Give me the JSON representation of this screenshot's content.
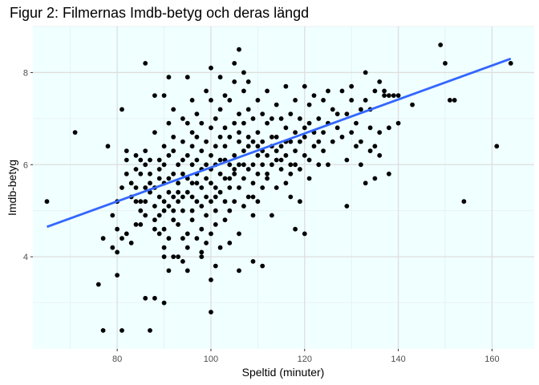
{
  "chart_data": {
    "type": "scatter",
    "title": "Figur 2: Filmernas Imdb-betyg och deras längd",
    "xlabel": "Speltid (minuter)",
    "ylabel": "Imdb-betyg",
    "xlim": [
      62,
      169
    ],
    "ylim": [
      2.0,
      9.0
    ],
    "xticks": [
      80,
      100,
      120,
      140,
      160
    ],
    "yticks": [
      4,
      6,
      8
    ],
    "grid": true,
    "legend": "none",
    "background_color": "#f0ffff",
    "point_color": "#000000",
    "trend_line_color": "#3366ff",
    "trend_line": {
      "x": [
        65,
        164
      ],
      "y": [
        4.65,
        8.3
      ]
    },
    "points": [
      [
        65,
        5.2
      ],
      [
        71,
        6.7
      ],
      [
        76,
        3.4
      ],
      [
        77,
        2.4
      ],
      [
        77,
        4.4
      ],
      [
        78,
        6.4
      ],
      [
        79,
        4.2
      ],
      [
        79,
        4.9
      ],
      [
        80,
        3.6
      ],
      [
        80,
        4.6
      ],
      [
        80,
        5.2
      ],
      [
        80,
        4.1
      ],
      [
        81,
        7.2
      ],
      [
        81,
        2.4
      ],
      [
        81,
        4.4
      ],
      [
        81,
        5.5
      ],
      [
        82,
        5.8
      ],
      [
        82,
        6.1
      ],
      [
        82,
        6.3
      ],
      [
        82,
        4.5
      ],
      [
        83,
        5.3
      ],
      [
        83,
        5.6
      ],
      [
        83,
        4.3
      ],
      [
        84,
        5.2
      ],
      [
        84,
        5.5
      ],
      [
        84,
        5.9
      ],
      [
        84,
        6.2
      ],
      [
        84,
        4.7
      ],
      [
        85,
        5.0
      ],
      [
        85,
        5.8
      ],
      [
        85,
        6.1
      ],
      [
        85,
        5.2
      ],
      [
        85,
        4.7
      ],
      [
        86,
        5.5
      ],
      [
        86,
        6.0
      ],
      [
        86,
        6.3
      ],
      [
        86,
        5.2
      ],
      [
        86,
        3.1
      ],
      [
        86,
        8.2
      ],
      [
        86,
        4.9
      ],
      [
        87,
        5.4
      ],
      [
        87,
        5.8
      ],
      [
        87,
        6.1
      ],
      [
        87,
        5.6
      ],
      [
        87,
        2.4
      ],
      [
        88,
        4.8
      ],
      [
        88,
        5.1
      ],
      [
        88,
        5.5
      ],
      [
        88,
        6.7
      ],
      [
        88,
        7.5
      ],
      [
        88,
        3.1
      ],
      [
        88,
        4.6
      ],
      [
        89,
        5.9
      ],
      [
        89,
        4.9
      ],
      [
        89,
        5.3
      ],
      [
        89,
        5.7
      ],
      [
        89,
        6.1
      ],
      [
        89,
        4.5
      ],
      [
        90,
        4.0
      ],
      [
        90,
        4.2
      ],
      [
        90,
        4.6
      ],
      [
        90,
        5.0
      ],
      [
        90,
        5.6
      ],
      [
        90,
        6.0
      ],
      [
        90,
        6.4
      ],
      [
        90,
        3.0
      ],
      [
        90,
        7.5
      ],
      [
        90,
        5.2
      ],
      [
        91,
        5.1
      ],
      [
        91,
        5.4
      ],
      [
        91,
        5.7
      ],
      [
        91,
        6.2
      ],
      [
        91,
        6.9
      ],
      [
        91,
        3.7
      ],
      [
        91,
        7.9
      ],
      [
        91,
        4.4
      ],
      [
        92,
        4.0
      ],
      [
        92,
        4.8
      ],
      [
        92,
        5.0
      ],
      [
        92,
        5.3
      ],
      [
        92,
        5.8
      ],
      [
        92,
        6.3
      ],
      [
        92,
        6.6
      ],
      [
        92,
        7.2
      ],
      [
        93,
        4.7
      ],
      [
        93,
        5.2
      ],
      [
        93,
        5.6
      ],
      [
        93,
        6.0
      ],
      [
        93,
        5.4
      ],
      [
        93,
        4.0
      ],
      [
        94,
        3.9
      ],
      [
        94,
        4.4
      ],
      [
        94,
        5.0
      ],
      [
        94,
        5.8
      ],
      [
        94,
        6.1
      ],
      [
        94,
        6.5
      ],
      [
        94,
        7.0
      ],
      [
        94,
        5.3
      ],
      [
        95,
        4.2
      ],
      [
        95,
        4.5
      ],
      [
        95,
        5.4
      ],
      [
        95,
        5.7
      ],
      [
        95,
        6.2
      ],
      [
        95,
        6.9
      ],
      [
        95,
        7.9
      ],
      [
        95,
        3.7
      ],
      [
        96,
        4.8
      ],
      [
        96,
        5.0
      ],
      [
        96,
        5.6
      ],
      [
        96,
        6.0
      ],
      [
        96,
        6.4
      ],
      [
        96,
        6.7
      ],
      [
        96,
        7.4
      ],
      [
        96,
        5.3
      ],
      [
        97,
        4.4
      ],
      [
        97,
        5.2
      ],
      [
        97,
        5.8
      ],
      [
        97,
        6.1
      ],
      [
        97,
        6.6
      ],
      [
        97,
        7.1
      ],
      [
        97,
        5.6
      ],
      [
        98,
        4.1
      ],
      [
        98,
        4.6
      ],
      [
        98,
        5.5
      ],
      [
        98,
        5.9
      ],
      [
        98,
        6.3
      ],
      [
        98,
        6.9
      ],
      [
        98,
        5.1
      ],
      [
        98,
        4.0
      ],
      [
        99,
        4.9
      ],
      [
        99,
        5.3
      ],
      [
        99,
        5.7
      ],
      [
        99,
        6.0
      ],
      [
        99,
        6.5
      ],
      [
        99,
        7.6
      ],
      [
        99,
        4.3
      ],
      [
        100,
        3.5
      ],
      [
        100,
        2.8
      ],
      [
        100,
        4.5
      ],
      [
        100,
        5.2
      ],
      [
        100,
        5.6
      ],
      [
        100,
        6.2
      ],
      [
        100,
        6.8
      ],
      [
        100,
        7.4
      ],
      [
        100,
        8.1
      ],
      [
        100,
        5.9
      ],
      [
        101,
        4.7
      ],
      [
        101,
        5.0
      ],
      [
        101,
        5.5
      ],
      [
        101,
        6.0
      ],
      [
        101,
        6.4
      ],
      [
        101,
        7.0
      ],
      [
        101,
        3.8
      ],
      [
        101,
        5.3
      ],
      [
        102,
        5.4
      ],
      [
        102,
        5.8
      ],
      [
        102,
        6.1
      ],
      [
        102,
        6.6
      ],
      [
        102,
        7.2
      ],
      [
        102,
        7.9
      ],
      [
        102,
        4.2
      ],
      [
        103,
        4.8
      ],
      [
        103,
        5.2
      ],
      [
        103,
        5.7
      ],
      [
        103,
        6.4
      ],
      [
        103,
        6.8
      ],
      [
        103,
        7.5
      ],
      [
        103,
        6.1
      ],
      [
        104,
        4.3
      ],
      [
        104,
        5.0
      ],
      [
        104,
        5.5
      ],
      [
        104,
        6.0
      ],
      [
        104,
        6.6
      ],
      [
        104,
        7.4
      ],
      [
        104,
        5.7
      ],
      [
        105,
        5.2
      ],
      [
        105,
        5.8
      ],
      [
        105,
        6.2
      ],
      [
        105,
        6.9
      ],
      [
        105,
        7.8
      ],
      [
        105,
        8.2
      ],
      [
        105,
        5.9
      ],
      [
        106,
        4.5
      ],
      [
        106,
        5.5
      ],
      [
        106,
        6.0
      ],
      [
        106,
        6.5
      ],
      [
        106,
        7.1
      ],
      [
        106,
        8.5
      ],
      [
        106,
        3.7
      ],
      [
        106,
        6.7
      ],
      [
        107,
        5.1
      ],
      [
        107,
        5.7
      ],
      [
        107,
        6.3
      ],
      [
        107,
        6.9
      ],
      [
        107,
        7.6
      ],
      [
        107,
        8.0
      ],
      [
        107,
        6.0
      ],
      [
        108,
        5.3
      ],
      [
        108,
        5.9
      ],
      [
        108,
        6.4
      ],
      [
        108,
        7.2
      ],
      [
        108,
        7.8
      ],
      [
        108,
        6.6
      ],
      [
        109,
        4.9
      ],
      [
        109,
        5.6
      ],
      [
        109,
        6.0
      ],
      [
        109,
        6.5
      ],
      [
        109,
        7.0
      ],
      [
        109,
        3.9
      ],
      [
        109,
        5.3
      ],
      [
        110,
        5.2
      ],
      [
        110,
        5.8
      ],
      [
        110,
        6.2
      ],
      [
        110,
        6.7
      ],
      [
        110,
        7.4
      ],
      [
        110,
        6.4
      ],
      [
        111,
        3.8
      ],
      [
        111,
        5.5
      ],
      [
        111,
        6.0
      ],
      [
        111,
        6.5
      ],
      [
        111,
        7.1
      ],
      [
        111,
        6.3
      ],
      [
        112,
        5.7
      ],
      [
        112,
        6.2
      ],
      [
        112,
        6.9
      ],
      [
        112,
        7.6
      ],
      [
        112,
        5.8
      ],
      [
        113,
        4.9
      ],
      [
        113,
        6.0
      ],
      [
        113,
        6.4
      ],
      [
        113,
        7.0
      ],
      [
        113,
        6.6
      ],
      [
        114,
        5.5
      ],
      [
        114,
        6.1
      ],
      [
        114,
        6.6
      ],
      [
        114,
        7.3
      ],
      [
        114,
        6.3
      ],
      [
        115,
        5.9
      ],
      [
        115,
        6.4
      ],
      [
        115,
        7.0
      ],
      [
        115,
        6.1
      ],
      [
        116,
        5.6
      ],
      [
        116,
        6.2
      ],
      [
        116,
        6.8
      ],
      [
        116,
        7.7
      ],
      [
        116,
        6.5
      ],
      [
        117,
        5.3
      ],
      [
        117,
        6.0
      ],
      [
        117,
        6.5
      ],
      [
        117,
        7.1
      ],
      [
        117,
        5.8
      ],
      [
        118,
        4.6
      ],
      [
        118,
        6.3
      ],
      [
        118,
        6.7
      ],
      [
        118,
        7.4
      ],
      [
        118,
        6.0
      ],
      [
        119,
        5.9
      ],
      [
        119,
        6.5
      ],
      [
        119,
        7.0
      ],
      [
        119,
        5.2
      ],
      [
        120,
        4.5
      ],
      [
        120,
        6.2
      ],
      [
        120,
        6.6
      ],
      [
        120,
        7.7
      ],
      [
        120,
        6.8
      ],
      [
        121,
        5.7
      ],
      [
        121,
        6.9
      ],
      [
        121,
        7.3
      ],
      [
        121,
        6.1
      ],
      [
        122,
        6.4
      ],
      [
        122,
        6.7
      ],
      [
        122,
        7.5
      ],
      [
        123,
        6.0
      ],
      [
        123,
        6.5
      ],
      [
        123,
        7.0
      ],
      [
        124,
        6.3
      ],
      [
        124,
        6.7
      ],
      [
        124,
        7.4
      ],
      [
        125,
        6.0
      ],
      [
        125,
        6.9
      ],
      [
        125,
        7.6
      ],
      [
        126,
        6.5
      ],
      [
        126,
        7.2
      ],
      [
        127,
        6.8
      ],
      [
        127,
        7.1
      ],
      [
        128,
        6.6
      ],
      [
        128,
        7.6
      ],
      [
        129,
        5.1
      ],
      [
        129,
        6.1
      ],
      [
        129,
        7.1
      ],
      [
        130,
        6.7
      ],
      [
        130,
        7.4
      ],
      [
        130,
        7.7
      ],
      [
        131,
        6.4
      ],
      [
        131,
        6.9
      ],
      [
        132,
        6.0
      ],
      [
        132,
        6.5
      ],
      [
        132,
        7.2
      ],
      [
        133,
        7.4
      ],
      [
        133,
        8.0
      ],
      [
        133,
        5.6
      ],
      [
        134,
        6.3
      ],
      [
        134,
        6.8
      ],
      [
        134,
        7.2
      ],
      [
        135,
        5.7
      ],
      [
        135,
        6.4
      ],
      [
        135,
        7.6
      ],
      [
        136,
        6.2
      ],
      [
        136,
        6.7
      ],
      [
        136,
        7.8
      ],
      [
        137,
        7.5
      ],
      [
        137,
        7.6
      ],
      [
        138,
        5.8
      ],
      [
        138,
        7.5
      ],
      [
        138,
        6.8
      ],
      [
        139,
        7.5
      ],
      [
        140,
        6.9
      ],
      [
        140,
        7.5
      ],
      [
        143,
        7.3
      ],
      [
        149,
        8.6
      ],
      [
        150,
        8.2
      ],
      [
        151,
        7.4
      ],
      [
        152,
        7.4
      ],
      [
        154,
        5.2
      ],
      [
        161,
        6.4
      ],
      [
        164,
        8.2
      ]
    ]
  }
}
